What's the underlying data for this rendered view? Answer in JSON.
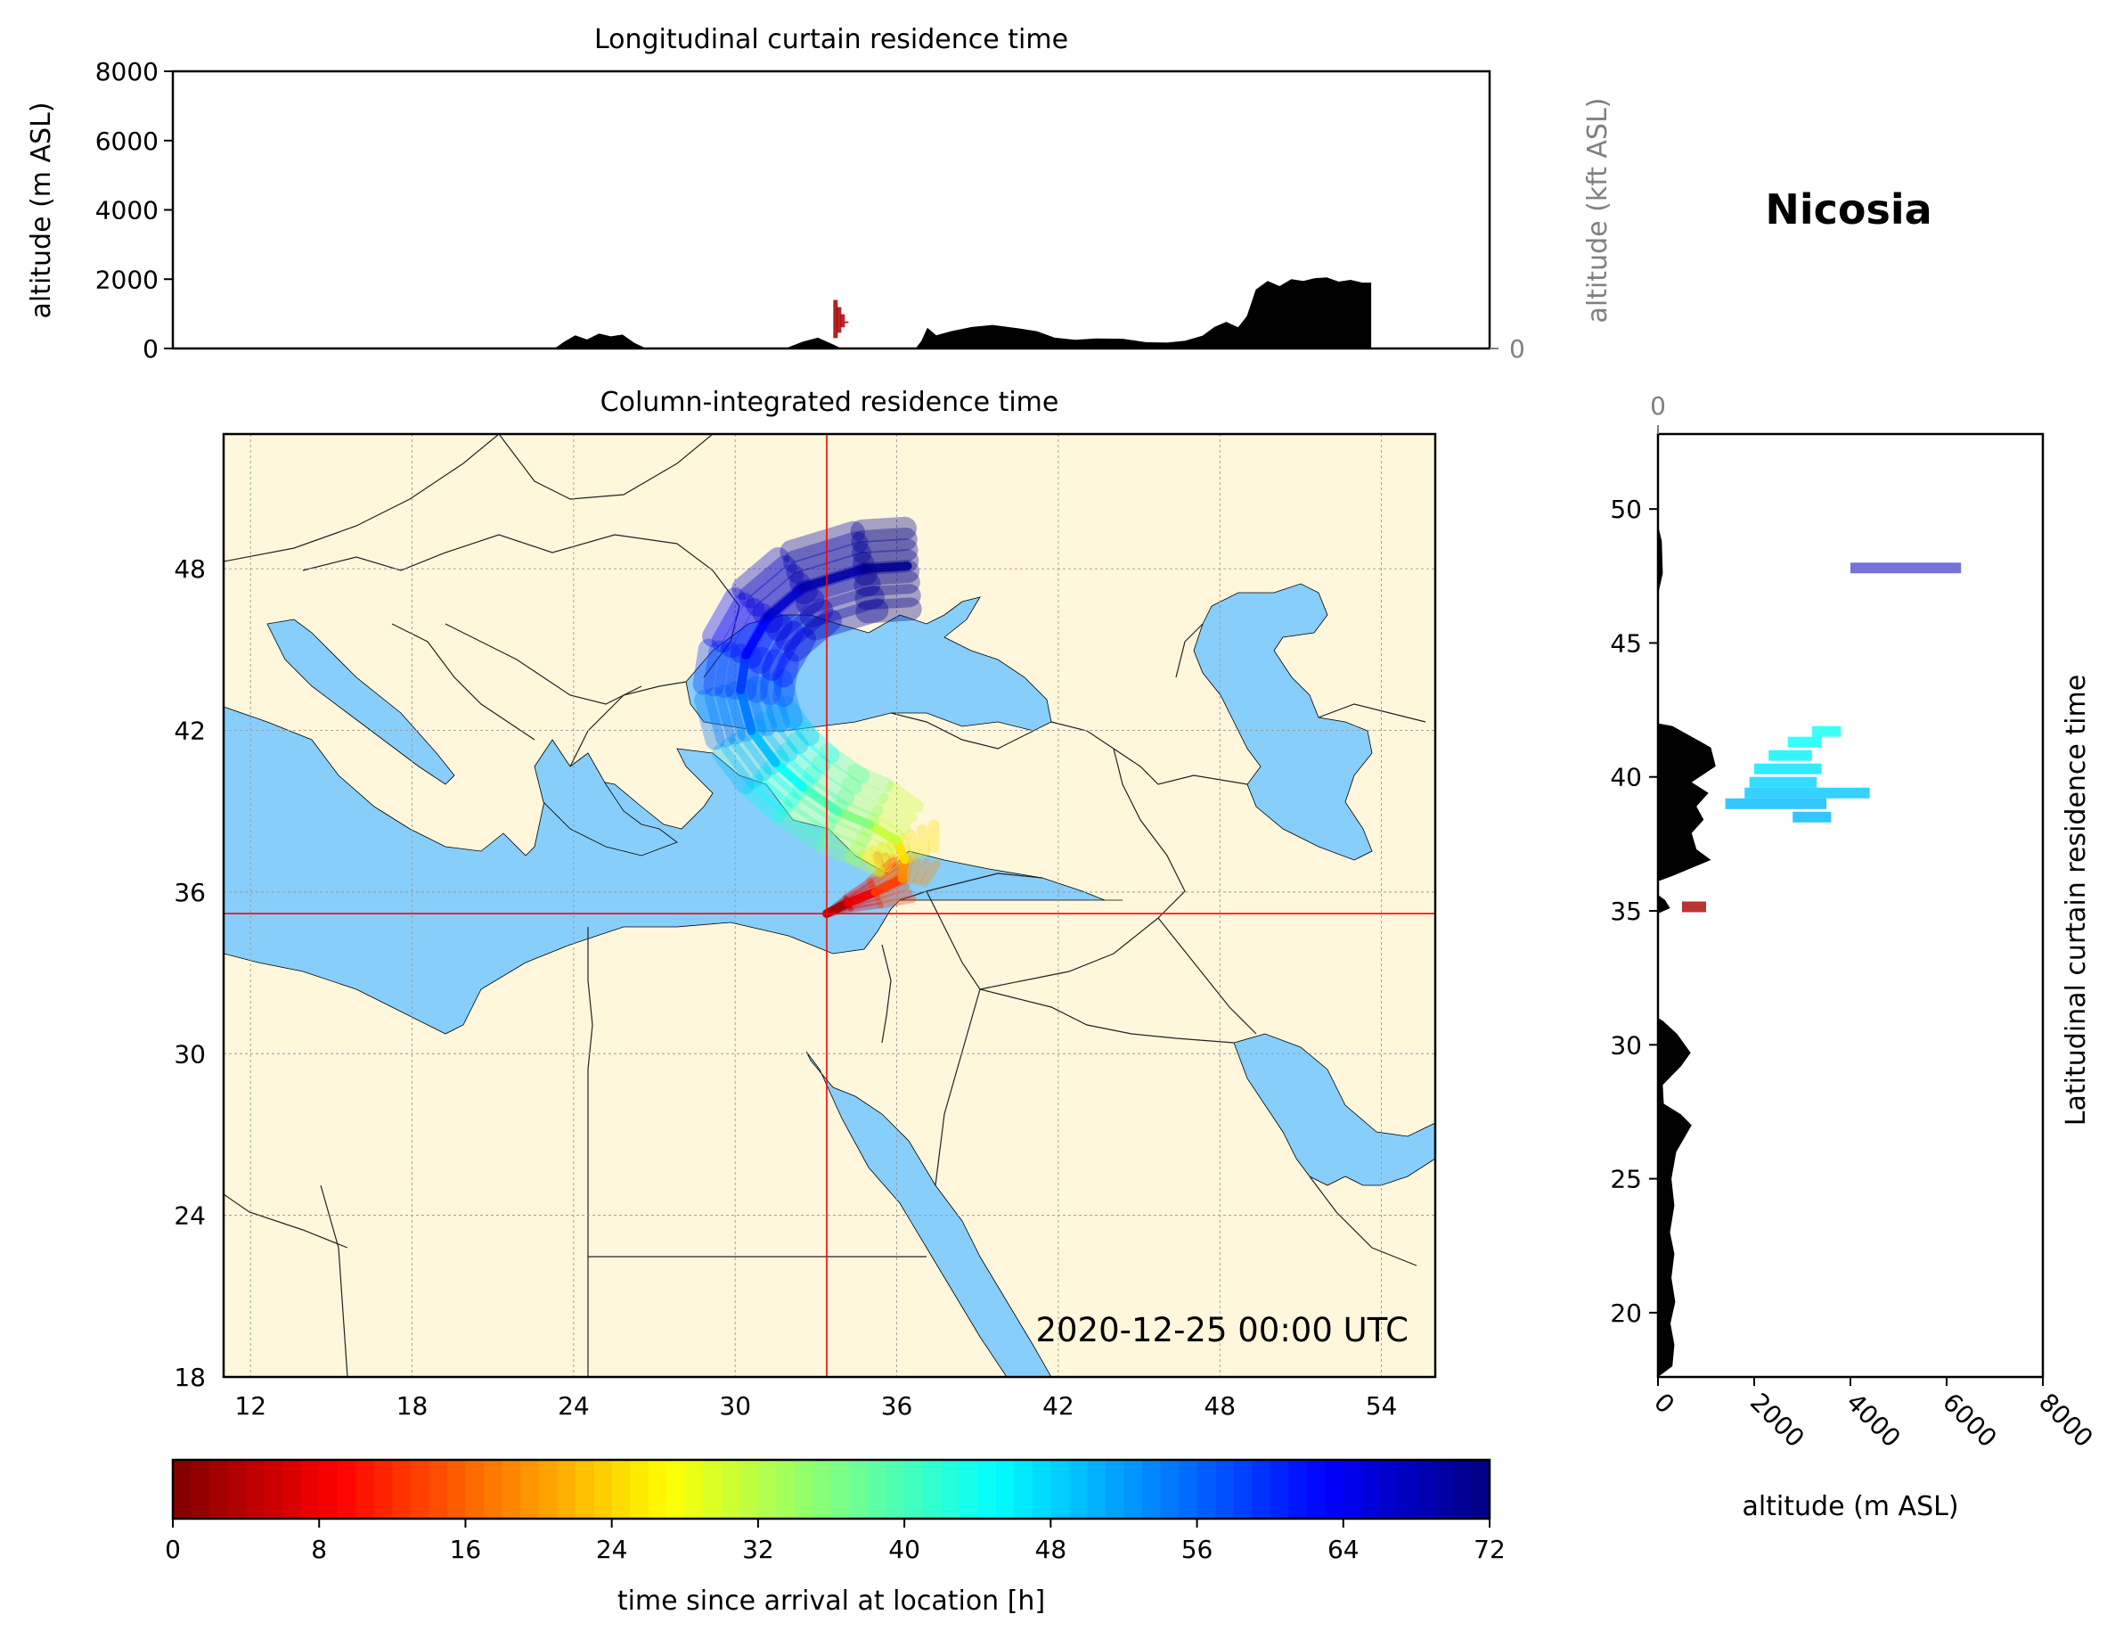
{
  "station": "Nicosia",
  "timestamp": "2020-12-25 00:00 UTC",
  "colors": {
    "land": "#fff7dc",
    "sea": "#87cefa",
    "terrain": "#000000",
    "crosshair": "#ff0000",
    "grid": "#999999",
    "colormap": [
      "#7f0000",
      "#ff0000",
      "#ff8000",
      "#ffff00",
      "#80ff80",
      "#00ffff",
      "#0080ff",
      "#0000ff",
      "#00007f"
    ]
  },
  "chart_data": [
    {
      "id": "longitudinal",
      "type": "area",
      "title": "Longitudinal curtain residence time",
      "ylabel": "altitude (m ASL)",
      "ylabel_right": "altitude (kft ASL)",
      "xlim": [
        11,
        55.5
      ],
      "ylim": [
        0,
        8000
      ],
      "yticks": [
        "0",
        "2000",
        "4000",
        "6000",
        "8000"
      ],
      "yticks_right": [
        "0",
        "50",
        "100"
      ],
      "yticks_right_values": [
        0,
        50,
        100
      ],
      "gridlines_kft": [
        0,
        50,
        100
      ],
      "terrain": [
        [
          23.9,
          0
        ],
        [
          24.2,
          180
        ],
        [
          24.6,
          380
        ],
        [
          25.0,
          260
        ],
        [
          25.4,
          430
        ],
        [
          25.8,
          350
        ],
        [
          26.2,
          400
        ],
        [
          26.6,
          160
        ],
        [
          27.0,
          0
        ],
        [
          31.7,
          0
        ],
        [
          32.3,
          200
        ],
        [
          32.8,
          310
        ],
        [
          33.3,
          120
        ],
        [
          33.6,
          0
        ],
        [
          36.1,
          0
        ],
        [
          36.3,
          220
        ],
        [
          36.5,
          600
        ],
        [
          36.8,
          380
        ],
        [
          37.3,
          500
        ],
        [
          38.0,
          620
        ],
        [
          38.7,
          680
        ],
        [
          39.6,
          580
        ],
        [
          40.2,
          500
        ],
        [
          40.8,
          310
        ],
        [
          41.5,
          250
        ],
        [
          42.2,
          290
        ],
        [
          43.1,
          280
        ],
        [
          43.9,
          180
        ],
        [
          44.6,
          170
        ],
        [
          45.2,
          220
        ],
        [
          45.8,
          370
        ],
        [
          46.2,
          620
        ],
        [
          46.6,
          770
        ],
        [
          47.0,
          610
        ],
        [
          47.3,
          940
        ],
        [
          47.6,
          1700
        ],
        [
          48.0,
          1950
        ],
        [
          48.4,
          1800
        ],
        [
          48.8,
          2000
        ],
        [
          49.2,
          1950
        ],
        [
          49.6,
          2030
        ],
        [
          50.0,
          2050
        ],
        [
          50.4,
          1930
        ],
        [
          50.8,
          1980
        ],
        [
          51.2,
          1900
        ],
        [
          51.5,
          1900
        ],
        [
          51.5,
          0
        ]
      ],
      "plume": [
        {
          "x": 33.5,
          "y0": 300,
          "y1": 1400,
          "hours": 2
        }
      ],
      "grid": true
    },
    {
      "id": "map",
      "type": "heatmap",
      "title": "Column-integrated residence time",
      "xlim": [
        11,
        56
      ],
      "ylim": [
        18,
        53
      ],
      "xticks": [
        "12",
        "18",
        "24",
        "30",
        "36",
        "42",
        "48",
        "54"
      ],
      "xtick_values": [
        12,
        18,
        24,
        30,
        36,
        42,
        48,
        54
      ],
      "yticks": [
        "18",
        "24",
        "30",
        "36",
        "42",
        "48"
      ],
      "ytick_values": [
        18,
        24,
        30,
        36,
        42,
        48
      ],
      "station_lon": 33.4,
      "station_lat": 35.2,
      "trajectory": [
        [
          33.4,
          35.2,
          1
        ],
        [
          34.2,
          35.6,
          5
        ],
        [
          35.2,
          36.0,
          10
        ],
        [
          36.2,
          36.5,
          16
        ],
        [
          36.3,
          37.2,
          22
        ],
        [
          36.0,
          37.9,
          28
        ],
        [
          35.0,
          38.5,
          34
        ],
        [
          33.8,
          39.0,
          38
        ],
        [
          32.5,
          39.9,
          42
        ],
        [
          31.5,
          40.8,
          47
        ],
        [
          30.6,
          42.0,
          52
        ],
        [
          30.2,
          43.5,
          57
        ],
        [
          30.4,
          44.8,
          61
        ],
        [
          31.2,
          46.2,
          65
        ],
        [
          32.5,
          47.3,
          68
        ],
        [
          34.8,
          48.0,
          70
        ],
        [
          36.4,
          48.1,
          72
        ]
      ],
      "grid": true
    },
    {
      "id": "latitudinal",
      "type": "area",
      "title": "Latitudinal curtain residence time",
      "xlabel": "altitude (m ASL)",
      "xlim": [
        0,
        8000
      ],
      "ylim": [
        17.6,
        52.8
      ],
      "xticks": [
        "0",
        "2000",
        "4000",
        "6000",
        "8000"
      ],
      "xticks_top": [
        "0",
        "50",
        "100"
      ],
      "xticks_top_values": [
        0,
        50,
        100
      ],
      "yticks": [
        "20",
        "25",
        "30",
        "35",
        "40",
        "45",
        "50"
      ],
      "ytick_values": [
        20,
        25,
        30,
        35,
        40,
        45,
        50
      ],
      "terrain": [
        [
          0,
          17.6
        ],
        [
          300,
          18.0
        ],
        [
          340,
          18.8
        ],
        [
          260,
          19.6
        ],
        [
          360,
          20.4
        ],
        [
          280,
          21.3
        ],
        [
          340,
          22.2
        ],
        [
          250,
          23.0
        ],
        [
          340,
          24.0
        ],
        [
          280,
          25.0
        ],
        [
          380,
          26.0
        ],
        [
          700,
          27.0
        ],
        [
          480,
          27.4
        ],
        [
          120,
          27.8
        ],
        [
          100,
          28.5
        ],
        [
          480,
          29.2
        ],
        [
          680,
          29.7
        ],
        [
          400,
          30.4
        ],
        [
          100,
          30.9
        ],
        [
          0,
          31.0
        ],
        [
          0,
          34.9
        ],
        [
          250,
          35.1
        ],
        [
          150,
          35.4
        ],
        [
          0,
          35.6
        ],
        [
          0,
          36.1
        ],
        [
          300,
          36.3
        ],
        [
          700,
          36.6
        ],
        [
          1100,
          36.9
        ],
        [
          800,
          37.3
        ],
        [
          700,
          37.9
        ],
        [
          950,
          38.4
        ],
        [
          800,
          38.9
        ],
        [
          1050,
          39.4
        ],
        [
          700,
          39.8
        ],
        [
          1200,
          40.4
        ],
        [
          1100,
          41.1
        ],
        [
          800,
          41.4
        ],
        [
          300,
          41.9
        ],
        [
          0,
          42.0
        ],
        [
          0,
          46.8
        ],
        [
          100,
          47.6
        ],
        [
          80,
          48.8
        ],
        [
          0,
          49.4
        ],
        [
          0,
          52.8
        ]
      ],
      "plume_bands": [
        {
          "lat": 47.8,
          "x0": 4000,
          "x1": 6300,
          "hours": 68
        },
        {
          "lat": 41.7,
          "x0": 3200,
          "x1": 3800,
          "hours": 44
        },
        {
          "lat": 41.3,
          "x0": 2700,
          "x1": 3400,
          "hours": 45
        },
        {
          "lat": 40.8,
          "x0": 2300,
          "x1": 3200,
          "hours": 46
        },
        {
          "lat": 40.3,
          "x0": 2000,
          "x1": 3400,
          "hours": 47
        },
        {
          "lat": 39.8,
          "x0": 1900,
          "x1": 3300,
          "hours": 48
        },
        {
          "lat": 39.4,
          "x0": 1800,
          "x1": 4400,
          "hours": 49
        },
        {
          "lat": 39.0,
          "x0": 1400,
          "x1": 3500,
          "hours": 50
        },
        {
          "lat": 38.5,
          "x0": 2800,
          "x1": 3600,
          "hours": 50
        },
        {
          "lat": 35.15,
          "x0": 500,
          "x1": 1000,
          "hours": 3
        }
      ],
      "grid": true
    },
    {
      "id": "colorbar",
      "type": "heatmap",
      "xlabel": "time since arrival at location [h]",
      "range": [
        0,
        72
      ],
      "ticks": [
        "0",
        "8",
        "16",
        "24",
        "32",
        "40",
        "48",
        "56",
        "64",
        "72"
      ],
      "tick_values": [
        0,
        8,
        16,
        24,
        32,
        40,
        48,
        56,
        64,
        72
      ],
      "levels": 72
    }
  ]
}
